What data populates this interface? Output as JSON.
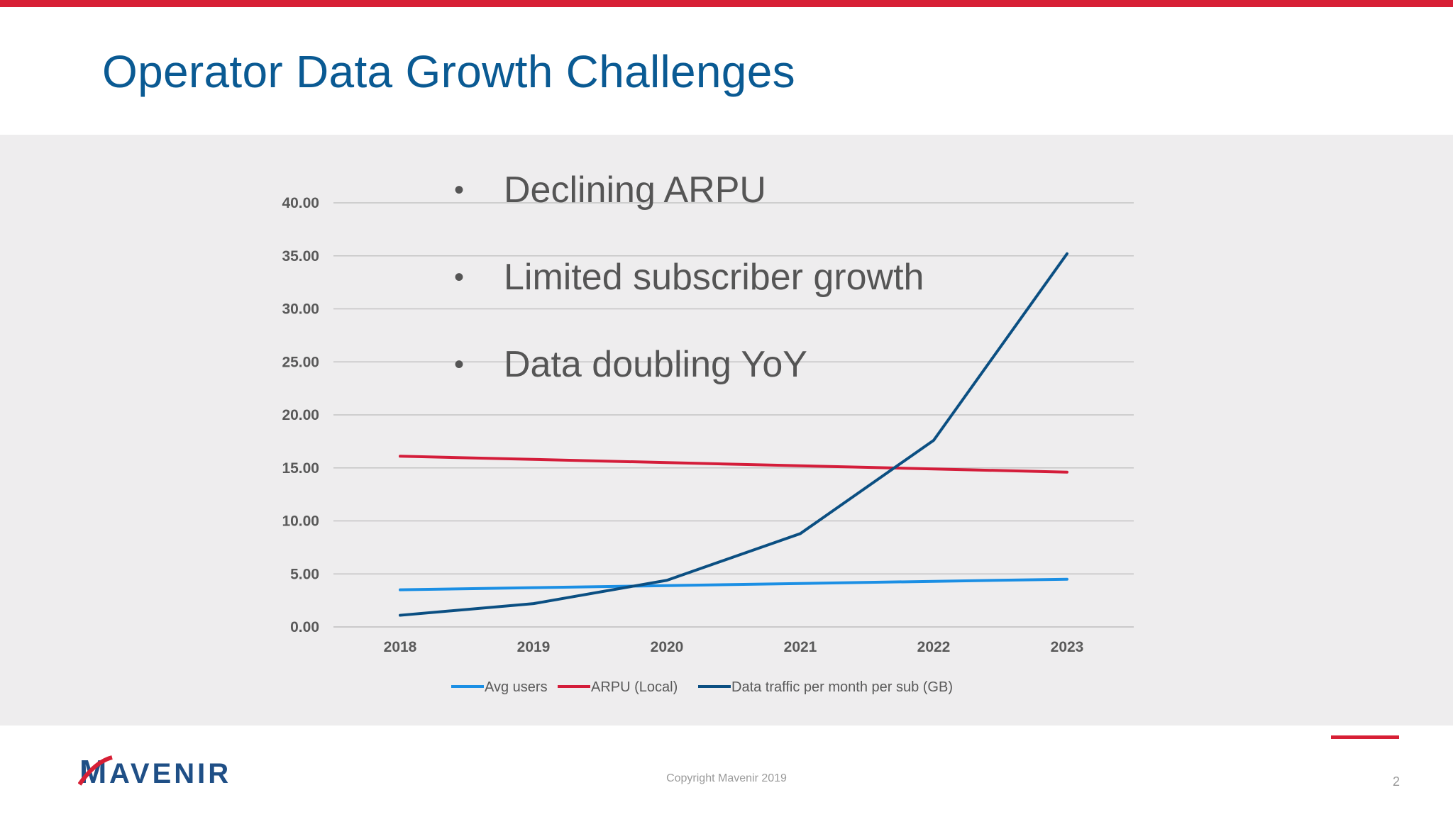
{
  "slide": {
    "title": "Operator Data Growth Challenges",
    "bullets": [
      "Declining ARPU",
      "Limited subscriber growth",
      "Data doubling YoY"
    ],
    "logo_text": "AVENIR",
    "logo_initial": "M",
    "copyright": "Copyright Mavenir 2019",
    "page_number": "2"
  },
  "colors": {
    "accent_red": "#d71f35",
    "title_blue": "#0a5a93",
    "avg_users": "#1b8fe4",
    "arpu": "#d41d3a",
    "data_traffic": "#0b4f82"
  },
  "chart_data": {
    "type": "line",
    "categories": [
      "2018",
      "2019",
      "2020",
      "2021",
      "2022",
      "2023"
    ],
    "y_ticks": [
      "0.00",
      "5.00",
      "10.00",
      "15.00",
      "20.00",
      "25.00",
      "30.00",
      "35.00",
      "40.00"
    ],
    "ylim": [
      0,
      40
    ],
    "grid": true,
    "legend_position": "bottom",
    "series": [
      {
        "name": "Avg users",
        "color": "#1b8fe4",
        "values": [
          3.5,
          3.7,
          3.9,
          4.1,
          4.3,
          4.5
        ]
      },
      {
        "name": "ARPU (Local)",
        "color": "#d41d3a",
        "values": [
          16.1,
          15.8,
          15.5,
          15.2,
          14.9,
          14.6
        ]
      },
      {
        "name": "Data traffic per month per sub (GB)",
        "color": "#0b4f82",
        "values": [
          1.1,
          2.2,
          4.4,
          8.8,
          17.6,
          35.2
        ]
      }
    ]
  }
}
